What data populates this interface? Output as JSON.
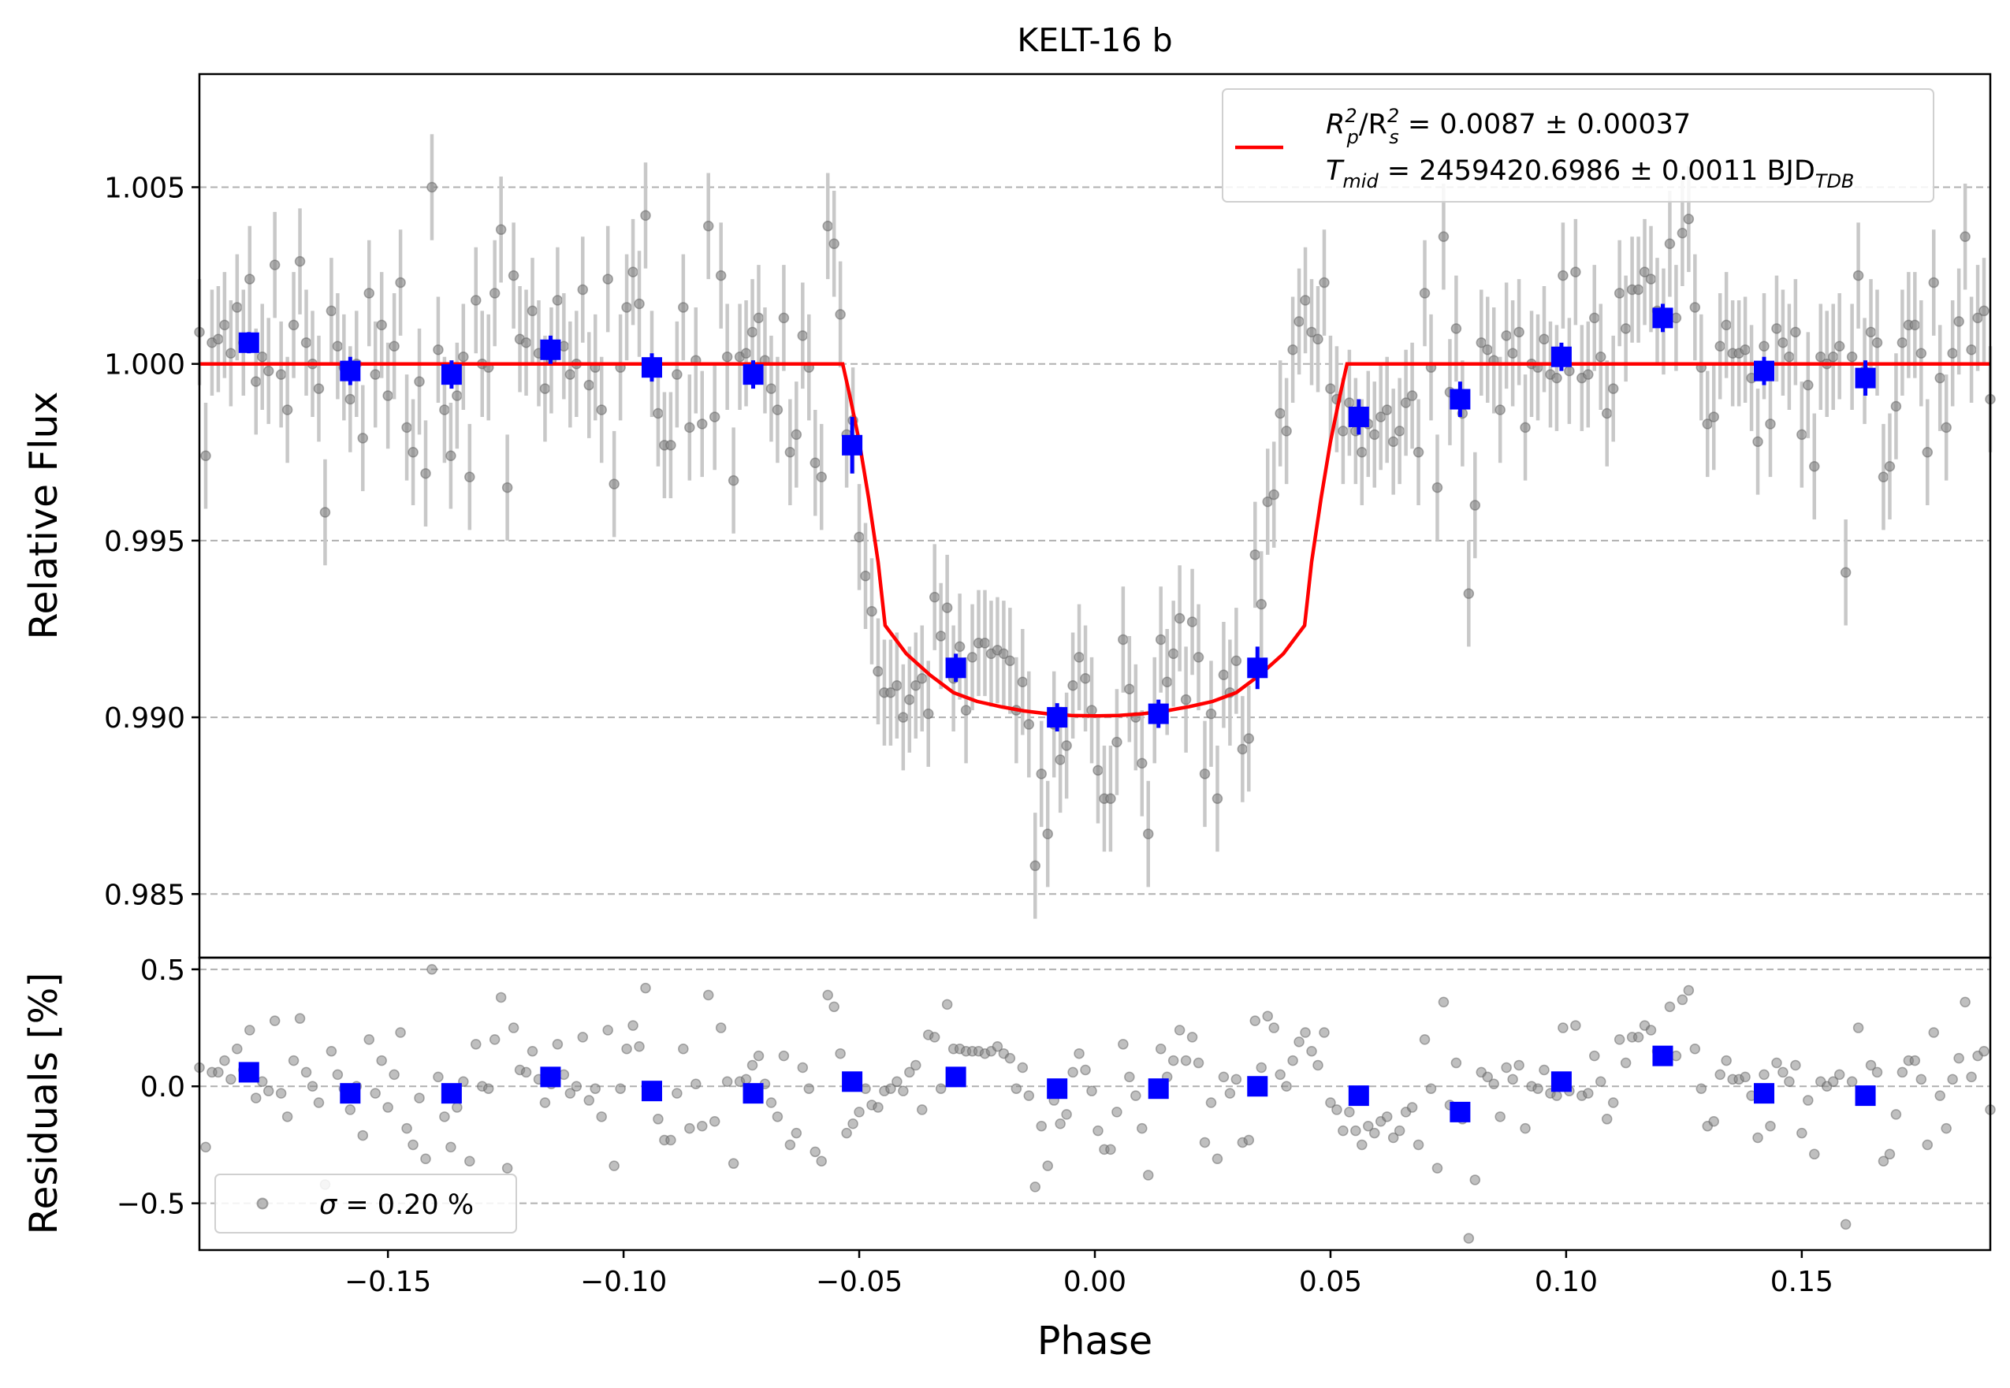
{
  "chart_data": [
    {
      "type": "scatter",
      "panel": "main",
      "title": "KELT-16 b",
      "xlabel": "",
      "ylabel": "Relative Flux",
      "xlim": [
        -0.19,
        0.19
      ],
      "ylim": [
        0.9832,
        1.0082
      ],
      "yticks": [
        0.985,
        0.99,
        0.995,
        1.0,
        1.005
      ],
      "ytick_labels": [
        "0.985",
        "0.990",
        "0.995",
        "1.000",
        "1.005"
      ],
      "grid": "horizontal dashed",
      "legend": {
        "placement": "top-right",
        "line1_prefix": "R",
        "line1_sub1": "p",
        "line1_sup1": "2",
        "line1_slash": "/R",
        "line1_sub2": "s",
        "line1_sup2": "2",
        "line1_value": " = 0.0087 ± 0.00037",
        "line2_prefix": "T",
        "line2_sub": "mid",
        "line2_value": " = 2459420.6986 ± 0.0011 BJD",
        "line2_unit_sub": "TDB"
      },
      "colors": {
        "model": "#ff0000",
        "binned": "#0000ff",
        "raw_point": "#808080",
        "raw_error": "#c8c8c8",
        "grid": "#b0b0b0"
      },
      "model": {
        "name": "transit model",
        "x": [
          -0.19,
          -0.0535,
          -0.052,
          -0.05,
          -0.048,
          -0.046,
          -0.0445,
          -0.04,
          -0.035,
          -0.03,
          -0.025,
          -0.02,
          -0.015,
          -0.01,
          -0.005,
          0.0,
          0.005,
          0.01,
          0.015,
          0.02,
          0.025,
          0.03,
          0.035,
          0.04,
          0.0445,
          0.046,
          0.048,
          0.05,
          0.052,
          0.0535,
          0.19
        ],
        "y": [
          1.0,
          1.0,
          0.9991,
          0.9978,
          0.9962,
          0.9944,
          0.9926,
          0.9918,
          0.9912,
          0.9907,
          0.99045,
          0.9903,
          0.99018,
          0.9901,
          0.99005,
          0.99004,
          0.99005,
          0.9901,
          0.99018,
          0.9903,
          0.99045,
          0.9907,
          0.9912,
          0.9918,
          0.9926,
          0.9944,
          0.9962,
          0.9978,
          0.9991,
          1.0,
          1.0
        ]
      },
      "binned": {
        "name": "binned data",
        "x": [
          -0.1795,
          -0.158,
          -0.1365,
          -0.1155,
          -0.094,
          -0.0725,
          -0.0515,
          -0.0295,
          -0.008,
          0.0135,
          0.0345,
          0.056,
          0.0775,
          0.099,
          0.1205,
          0.142,
          0.1635
        ],
        "y": [
          1.0006,
          0.9998,
          0.9997,
          1.0004,
          0.9999,
          0.9997,
          0.9977,
          0.9914,
          0.99,
          0.9901,
          0.9914,
          0.9985,
          0.999,
          1.0002,
          1.0013,
          0.9998,
          0.9996
        ],
        "yerr": [
          0.0003,
          0.0004,
          0.0004,
          0.0004,
          0.0004,
          0.0004,
          0.0008,
          0.0004,
          0.0004,
          0.0004,
          0.0006,
          0.0005,
          0.0005,
          0.0004,
          0.0004,
          0.0004,
          0.0005
        ]
      },
      "raw_error": 0.0015,
      "raw_y": [
        1.0009,
        0.9974,
        1.0006,
        1.0007,
        1.0011,
        1.0003,
        1.0016,
        1.0006,
        1.0024,
        0.9995,
        1.0002,
        0.9998,
        1.0028,
        0.9997,
        0.9987,
        1.0011,
        1.0029,
        1.0006,
        1.0,
        0.9993,
        0.9958,
        1.0015,
        1.0005,
        0.9999,
        0.999,
        1.0,
        0.9979,
        1.002,
        0.9997,
        1.0011,
        0.9991,
        1.0005,
        1.0023,
        0.9982,
        0.9975,
        0.9995,
        0.9969,
        1.005,
        1.0004,
        0.9987,
        0.9974,
        0.9991,
        1.0002,
        0.9968,
        1.0018,
        1.0,
        0.9999,
        1.002,
        1.0038,
        0.9965,
        1.0025,
        1.0007,
        1.0006,
        1.0015,
        1.0003,
        0.9993,
        1.0001,
        1.0018,
        1.0005,
        0.9997,
        1.0,
        1.0021,
        0.9994,
        0.9999,
        0.9987,
        1.0024,
        0.9966,
        0.9999,
        1.0016,
        1.0026,
        1.0017,
        1.0042,
        1.0,
        0.9986,
        0.9977,
        0.9977,
        0.9997,
        1.0016,
        0.9982,
        1.0001,
        0.9983,
        1.0039,
        0.9985,
        1.0025,
        1.0002,
        0.9967,
        1.0002,
        1.0003,
        1.0009,
        1.0013,
        1.0001,
        0.9993,
        0.9987,
        1.0013,
        0.9975,
        0.998,
        1.0008,
        0.9999,
        0.9972,
        0.9968,
        1.0039,
        1.0034,
        1.0014,
        0.998,
        0.9984,
        0.9951,
        0.994,
        0.993,
        0.9913,
        0.9907,
        0.9907,
        0.9909,
        0.99,
        0.9905,
        0.9909,
        0.9911,
        0.9901,
        0.9934,
        0.9923,
        0.9931,
        0.9911,
        0.992,
        0.9902,
        0.9917,
        0.9921,
        0.9921,
        0.9918,
        0.9919,
        0.9918,
        0.9916,
        0.9902,
        0.991,
        0.9898,
        0.9858,
        0.9884,
        0.9867,
        0.9898,
        0.9888,
        0.9892,
        0.9909,
        0.9917,
        0.9911,
        0.9902,
        0.9885,
        0.9877,
        0.9877,
        0.9893,
        0.9922,
        0.9908,
        0.99,
        0.9887,
        0.9867,
        0.9902,
        0.9922,
        0.991,
        0.9918,
        0.9928,
        0.9905,
        0.9927,
        0.9917,
        0.9884,
        0.9901,
        0.9877,
        0.9912,
        0.9907,
        0.9916,
        0.9891,
        0.9894,
        0.9946,
        0.9932,
        0.9961,
        0.9963,
        0.9986,
        0.9981,
        1.0004,
        1.0012,
        1.0018,
        1.0009,
        1.0007,
        1.0023,
        0.9993,
        0.999,
        0.9981,
        0.9989,
        0.9981,
        0.9975,
        0.9983,
        0.998,
        0.9985,
        0.9987,
        0.9978,
        0.9981,
        0.9989,
        0.9991,
        0.9975,
        1.002,
        0.9999,
        0.9965,
        1.0036,
        0.9992,
        1.001,
        0.9986,
        0.9935,
        0.996,
        1.0006,
        1.0004,
        1.0001,
        0.9987,
        1.0008,
        1.0003,
        1.0009,
        0.9982,
        1.0,
        0.9999,
        1.0007,
        0.9997,
        0.9996,
        1.0025,
        0.9998,
        1.0026,
        0.9996,
        0.9997,
        1.0013,
        1.0002,
        0.9986,
        0.9993,
        1.002,
        1.001,
        1.0021,
        1.0021,
        1.0026,
        1.0024,
        1.0015,
        1.0012,
        1.0034,
        1.0013,
        1.0037,
        1.0041,
        1.0016,
        0.9999,
        0.9983,
        0.9985,
        1.0005,
        1.0011,
        1.0003,
        1.0003,
        1.0004,
        0.9996,
        0.9978,
        1.0005,
        0.9983,
        1.001,
        1.0006,
        1.0002,
        1.0009,
        0.998,
        0.9994,
        0.9971,
        1.0002,
        1.0,
        1.0002,
        1.0005,
        0.9941,
        1.0002,
        1.0025,
        0.9998,
        1.0009,
        1.0006,
        0.9968,
        0.9971,
        0.9988,
        1.0006,
        1.0011,
        1.0011,
        1.0003,
        0.9975,
        1.0023,
        0.9996,
        0.9982,
        1.0003,
        1.0012,
        1.0036,
        1.0004,
        1.0013,
        1.0015,
        0.999
      ]
    },
    {
      "type": "scatter",
      "panel": "residuals",
      "title": "",
      "xlabel": "Phase",
      "ylabel": "Residuals [%]",
      "xlim": [
        -0.19,
        0.19
      ],
      "ylim": [
        -0.7,
        0.55
      ],
      "xticks": [
        -0.15,
        -0.1,
        -0.05,
        0.0,
        0.05,
        0.1,
        0.15
      ],
      "xtick_labels": [
        "−0.15",
        "−0.10",
        "−0.05",
        "0.00",
        "0.05",
        "0.10",
        "0.15"
      ],
      "yticks": [
        -0.5,
        0.0,
        0.5
      ],
      "ytick_labels": [
        "−0.5",
        "0.0",
        "0.5"
      ],
      "grid": "horizontal dashed",
      "legend": {
        "placement": "bottom-left",
        "sigma_symbol": "σ",
        "sigma_value": " = 0.20 %"
      },
      "binned": {
        "x": [
          -0.1795,
          -0.158,
          -0.1365,
          -0.1155,
          -0.094,
          -0.0725,
          -0.0515,
          -0.0295,
          -0.008,
          0.0135,
          0.0345,
          0.056,
          0.0775,
          0.099,
          0.1205,
          0.142,
          0.1635
        ],
        "y": [
          0.06,
          -0.03,
          -0.03,
          0.04,
          -0.02,
          -0.03,
          0.02,
          0.04,
          -0.01,
          -0.01,
          0.0,
          -0.04,
          -0.11,
          0.02,
          0.13,
          -0.03,
          -0.04
        ]
      },
      "raw_y": [
        0.08,
        -0.26,
        0.06,
        0.06,
        0.11,
        0.03,
        0.16,
        0.07,
        0.24,
        -0.05,
        0.02,
        -0.02,
        0.28,
        -0.03,
        -0.13,
        0.11,
        0.29,
        0.06,
        0.0,
        -0.07,
        -0.42,
        0.15,
        0.05,
        -0.01,
        -0.1,
        0.0,
        -0.21,
        0.2,
        -0.03,
        0.11,
        -0.09,
        0.05,
        0.23,
        -0.18,
        -0.25,
        -0.05,
        -0.31,
        0.5,
        0.04,
        -0.13,
        -0.26,
        -0.09,
        0.02,
        -0.32,
        0.18,
        0.0,
        -0.01,
        0.2,
        0.38,
        -0.35,
        0.25,
        0.07,
        0.06,
        0.15,
        0.03,
        -0.07,
        0.01,
        0.18,
        0.05,
        -0.03,
        0.0,
        0.21,
        -0.06,
        -0.01,
        -0.13,
        0.24,
        -0.34,
        -0.01,
        0.16,
        0.26,
        0.17,
        0.42,
        0.0,
        -0.14,
        -0.23,
        -0.23,
        -0.03,
        0.16,
        -0.18,
        0.01,
        -0.17,
        0.39,
        -0.15,
        0.25,
        0.02,
        -0.33,
        0.02,
        0.03,
        0.09,
        0.13,
        0.01,
        -0.07,
        -0.13,
        0.13,
        -0.25,
        -0.2,
        0.08,
        -0.01,
        -0.28,
        -0.32,
        0.39,
        0.34,
        0.14,
        -0.2,
        -0.16,
        -0.11,
        -0.01,
        -0.08,
        -0.09,
        -0.02,
        -0.01,
        0.02,
        -0.02,
        0.06,
        0.09,
        -0.1,
        0.22,
        0.21,
        -0.01,
        0.35,
        0.16,
        0.16,
        0.15,
        0.15,
        0.15,
        0.14,
        0.15,
        0.17,
        0.14,
        0.12,
        -0.01,
        0.08,
        -0.04,
        -0.43,
        -0.17,
        -0.34,
        -0.06,
        -0.16,
        -0.12,
        0.06,
        0.14,
        0.07,
        -0.02,
        -0.19,
        -0.27,
        -0.27,
        -0.11,
        0.18,
        0.04,
        -0.04,
        -0.18,
        -0.38,
        -0.03,
        0.16,
        0.04,
        0.11,
        0.24,
        0.11,
        0.21,
        0.1,
        -0.24,
        -0.07,
        -0.31,
        0.04,
        -0.03,
        0.03,
        -0.24,
        -0.23,
        0.28,
        0.08,
        0.3,
        0.25,
        0.05,
        0.0,
        0.11,
        0.19,
        0.23,
        0.15,
        0.09,
        0.23,
        -0.07,
        -0.1,
        -0.19,
        -0.11,
        -0.19,
        -0.25,
        -0.17,
        -0.2,
        -0.15,
        -0.13,
        -0.22,
        -0.19,
        -0.11,
        -0.09,
        -0.25,
        0.2,
        -0.01,
        -0.35,
        0.36,
        -0.08,
        0.1,
        -0.14,
        -0.65,
        -0.4,
        0.06,
        0.04,
        0.01,
        -0.13,
        0.08,
        0.03,
        0.09,
        -0.18,
        0.0,
        -0.01,
        0.07,
        -0.03,
        -0.04,
        0.25,
        -0.02,
        0.26,
        -0.04,
        -0.03,
        0.13,
        0.02,
        -0.14,
        -0.07,
        0.2,
        0.1,
        0.21,
        0.21,
        0.26,
        0.24,
        0.15,
        0.12,
        0.34,
        0.13,
        0.37,
        0.41,
        0.16,
        -0.01,
        -0.17,
        -0.15,
        0.05,
        0.11,
        0.03,
        0.03,
        0.04,
        -0.04,
        -0.22,
        0.05,
        -0.17,
        0.1,
        0.06,
        0.02,
        0.09,
        -0.2,
        -0.06,
        -0.29,
        0.02,
        0.0,
        0.02,
        0.05,
        -0.59,
        0.02,
        0.25,
        -0.02,
        0.09,
        0.06,
        -0.32,
        -0.29,
        -0.12,
        0.06,
        0.11,
        0.11,
        0.03,
        -0.25,
        0.23,
        -0.04,
        -0.18,
        0.03,
        0.12,
        0.36,
        0.04,
        0.13,
        0.15,
        -0.1
      ]
    }
  ]
}
